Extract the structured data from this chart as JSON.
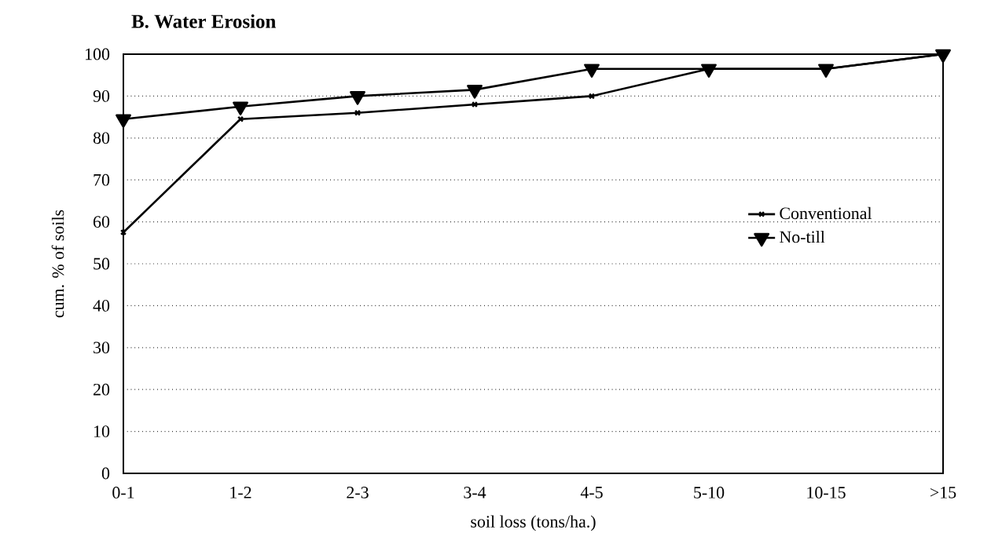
{
  "chart_data": {
    "type": "line",
    "title": "B. Water Erosion",
    "xlabel": "soil loss (tons/ha.)",
    "ylabel": "cum. % of soils",
    "categories": [
      "0-1",
      "1-2",
      "2-3",
      "3-4",
      "4-5",
      "5-10",
      "10-15",
      ">15"
    ],
    "series": [
      {
        "name": "Conventional",
        "color": "#000000",
        "marker": "cross",
        "values": [
          57.5,
          84.5,
          86,
          88,
          90,
          96.5,
          96.5,
          100
        ]
      },
      {
        "name": "No-till",
        "color": "#000000",
        "marker": "triangle",
        "values": [
          84.5,
          87.5,
          90,
          91.5,
          96.5,
          96.5,
          96.5,
          100
        ]
      }
    ],
    "ylim": [
      0,
      100
    ],
    "yticks": [
      0,
      10,
      20,
      30,
      40,
      50,
      60,
      70,
      80,
      90,
      100
    ],
    "grid": "y",
    "legend": "right",
    "line_style": "solid"
  }
}
